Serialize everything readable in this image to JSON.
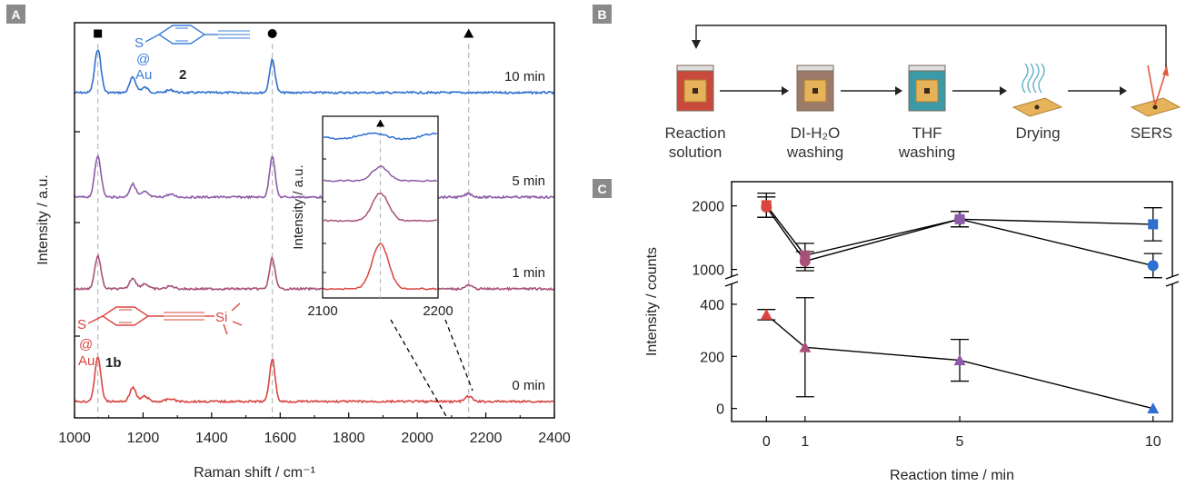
{
  "panels": {
    "A": {
      "label": "A"
    },
    "B": {
      "label": "B"
    },
    "C": {
      "label": "C"
    }
  },
  "colors": {
    "t10": "#2e6fcf",
    "t5": "#8c5aa8",
    "t1": "#a8507a",
    "t0": "#d9453f",
    "panel_label_bg": "#8a8a8a",
    "guide": "#bdbdbd",
    "mol2": "#3a7dd6",
    "mol1b": "#d9453f"
  },
  "chart_data": [
    {
      "type": "line",
      "panel": "A",
      "xlabel": "Raman shift / cm⁻¹",
      "ylabel": "Intensity / a.u.",
      "xlim": [
        1000,
        2400
      ],
      "xticks": [
        1000,
        1200,
        1400,
        1600,
        1800,
        2000,
        2200,
        2400
      ],
      "marker_positions": [
        {
          "symbol": "square",
          "x": 1068
        },
        {
          "symbol": "circle",
          "x": 1577
        },
        {
          "symbol": "triangle",
          "x": 2150
        }
      ],
      "peaks": [
        {
          "x": 1068,
          "width": 9
        },
        {
          "x": 1170,
          "width": 9
        },
        {
          "x": 1577,
          "width": 8
        },
        {
          "x": 2150,
          "width": 10
        }
      ],
      "series": [
        {
          "name": "10 min",
          "color_key": "t10",
          "peak_heights": [
            1.0,
            0.35,
            0.75,
            0.0
          ]
        },
        {
          "name": "5 min",
          "color_key": "t5",
          "peak_heights": [
            0.95,
            0.3,
            0.95,
            0.08
          ]
        },
        {
          "name": "1 min",
          "color_key": "t1",
          "peak_heights": [
            0.75,
            0.25,
            0.7,
            0.08
          ]
        },
        {
          "name": "0 min",
          "color_key": "t0",
          "peak_heights": [
            1.0,
            0.32,
            0.98,
            0.12
          ]
        }
      ],
      "molecules": {
        "top": {
          "atoms": [
            "S",
            "@",
            "Au"
          ],
          "number": "2"
        },
        "bottom": {
          "atoms": [
            "S",
            "@",
            "Au"
          ],
          "si": "Si",
          "number": "1b"
        }
      },
      "inset": {
        "xlim": [
          2100,
          2200
        ],
        "xticks": [
          2100,
          2200
        ],
        "ylabel": "Intensity / a.u.",
        "peak_center": 2150,
        "series_peak_heights": [
          0.0,
          0.45,
          0.8,
          1.0
        ]
      }
    },
    {
      "type": "scatter",
      "panel": "C",
      "xlabel": "Reaction time / min",
      "ylabel": "Intensity / counts",
      "x": [
        0,
        1,
        5,
        10
      ],
      "xticks": [
        0,
        1,
        5,
        10
      ],
      "broken_y_axis": true,
      "upper_ylim": [
        880,
        2380
      ],
      "upper_yticks": [
        1000,
        2000
      ],
      "lower_ylim": [
        -50,
        480
      ],
      "lower_yticks": [
        0,
        200,
        400
      ],
      "series": [
        {
          "marker": "square",
          "colors": [
            "t0",
            "t1",
            "t5",
            "t10"
          ],
          "values": [
            2010,
            1220,
            1790,
            1710
          ],
          "errors": [
            190,
            190,
            120,
            260
          ]
        },
        {
          "marker": "circle",
          "colors": [
            "t0",
            "t1",
            "t5",
            "t10"
          ],
          "values": [
            1980,
            1130,
            1790,
            1060
          ],
          "errors": [
            160,
            150,
            120,
            190
          ]
        },
        {
          "marker": "triangle",
          "colors": [
            "t0",
            "t1",
            "t5",
            "t10"
          ],
          "values": [
            360,
            235,
            185,
            0
          ],
          "errors": [
            20,
            190,
            80,
            0
          ]
        }
      ]
    }
  ],
  "workflow": {
    "steps": [
      {
        "label_lines": [
          "Reaction",
          "solution"
        ],
        "fill": "#c94a3d"
      },
      {
        "label_lines": [
          "DI-H₂O",
          "washing"
        ],
        "fill": "#9c7a6a"
      },
      {
        "label_lines": [
          "THF",
          "washing"
        ],
        "fill": "#3a9aa8"
      },
      {
        "label_lines": [
          "Drying"
        ],
        "fill": "#5fb0c9"
      },
      {
        "label_lines": [
          "SERS"
        ],
        "fill": "#e05a40"
      }
    ]
  }
}
